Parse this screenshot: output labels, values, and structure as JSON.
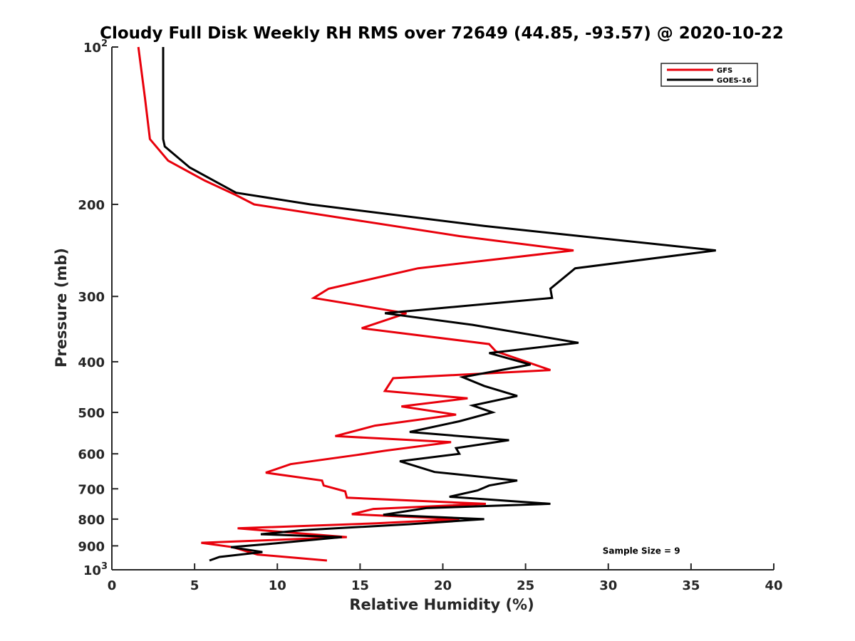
{
  "chart_data": {
    "type": "line",
    "title": "Cloudy Full Disk Weekly RH RMS over 72649 (44.85, -93.57) @ 2020-10-22",
    "xlabel": "Relative Humidity (%)",
    "ylabel": "Pressure (mb)",
    "xlim": [
      0,
      40
    ],
    "ylim": [
      100,
      1000
    ],
    "y_scale": "log",
    "y_reversed": true,
    "grid": false,
    "legend_position": "top-right",
    "x_ticks": [
      0,
      5,
      10,
      15,
      20,
      25,
      30,
      35,
      40
    ],
    "x_tick_labels": [
      "0",
      "5",
      "10",
      "15",
      "20",
      "25",
      "30",
      "35",
      "40"
    ],
    "y_ticks": [
      {
        "value": 100,
        "label": "10",
        "sup": "2"
      },
      {
        "value": 200,
        "label": "200"
      },
      {
        "value": 300,
        "label": "300"
      },
      {
        "value": 400,
        "label": "400"
      },
      {
        "value": 500,
        "label": "500"
      },
      {
        "value": 600,
        "label": "600"
      },
      {
        "value": 700,
        "label": "700"
      },
      {
        "value": 800,
        "label": "800"
      },
      {
        "value": 900,
        "label": "900"
      },
      {
        "value": 1000,
        "label": "10",
        "sup": "3"
      }
    ],
    "series": [
      {
        "name": "GFS",
        "color": "#e8000b",
        "points": [
          [
            1.6,
            100
          ],
          [
            2.0,
            125
          ],
          [
            2.3,
            150
          ],
          [
            3.4,
            165
          ],
          [
            5.6,
            180
          ],
          [
            7.5,
            192
          ],
          [
            8.6,
            200
          ],
          [
            15.0,
            215
          ],
          [
            21.0,
            230
          ],
          [
            27.9,
            245
          ],
          [
            18.5,
            265
          ],
          [
            13.1,
            290
          ],
          [
            12.2,
            302
          ],
          [
            17.8,
            323
          ],
          [
            15.1,
            345
          ],
          [
            22.8,
            370
          ],
          [
            23.2,
            382
          ],
          [
            26.5,
            415
          ],
          [
            17.0,
            430
          ],
          [
            16.5,
            455
          ],
          [
            21.5,
            470
          ],
          [
            17.5,
            487
          ],
          [
            20.8,
            505
          ],
          [
            15.9,
            530
          ],
          [
            13.5,
            555
          ],
          [
            20.5,
            570
          ],
          [
            16.5,
            592
          ],
          [
            14.8,
            603
          ],
          [
            10.8,
            628
          ],
          [
            9.3,
            652
          ],
          [
            12.7,
            675
          ],
          [
            12.8,
            690
          ],
          [
            14.1,
            708
          ],
          [
            14.2,
            728
          ],
          [
            22.6,
            748
          ],
          [
            15.8,
            765
          ],
          [
            14.5,
            783
          ],
          [
            21.0,
            800
          ],
          [
            16.0,
            815
          ],
          [
            7.6,
            833
          ],
          [
            14.2,
            866
          ],
          [
            5.4,
            888
          ],
          [
            7.3,
            905
          ],
          [
            8.8,
            935
          ],
          [
            13.0,
            960
          ]
        ]
      },
      {
        "name": "GOES-16",
        "color": "#000000",
        "points": [
          [
            3.1,
            100
          ],
          [
            3.1,
            125
          ],
          [
            3.1,
            150
          ],
          [
            3.2,
            155
          ],
          [
            4.7,
            170
          ],
          [
            7.5,
            190
          ],
          [
            12.0,
            200
          ],
          [
            22.5,
            220
          ],
          [
            36.5,
            245
          ],
          [
            28.0,
            265
          ],
          [
            26.5,
            290
          ],
          [
            26.6,
            302
          ],
          [
            16.5,
            323
          ],
          [
            21.8,
            340
          ],
          [
            28.2,
            368
          ],
          [
            22.8,
            385
          ],
          [
            25.3,
            405
          ],
          [
            21.2,
            428
          ],
          [
            22.5,
            445
          ],
          [
            24.5,
            465
          ],
          [
            21.8,
            485
          ],
          [
            23.0,
            500
          ],
          [
            21.0,
            520
          ],
          [
            18.0,
            545
          ],
          [
            24.0,
            565
          ],
          [
            20.8,
            585
          ],
          [
            21.0,
            600
          ],
          [
            17.4,
            620
          ],
          [
            19.5,
            650
          ],
          [
            24.5,
            675
          ],
          [
            22.8,
            690
          ],
          [
            22.1,
            705
          ],
          [
            20.4,
            725
          ],
          [
            26.5,
            748
          ],
          [
            19.0,
            762
          ],
          [
            16.4,
            785
          ],
          [
            22.5,
            800
          ],
          [
            18.0,
            818
          ],
          [
            11.5,
            840
          ],
          [
            9.0,
            855
          ],
          [
            13.9,
            866
          ],
          [
            9.9,
            890
          ],
          [
            7.2,
            905
          ],
          [
            9.1,
            925
          ],
          [
            6.5,
            945
          ],
          [
            5.9,
            960
          ]
        ]
      }
    ],
    "legend": [
      "GFS",
      "GOES-16"
    ],
    "annotations": [
      {
        "text": "Sample Size = 9",
        "x": 32.0,
        "y": 920
      }
    ]
  }
}
